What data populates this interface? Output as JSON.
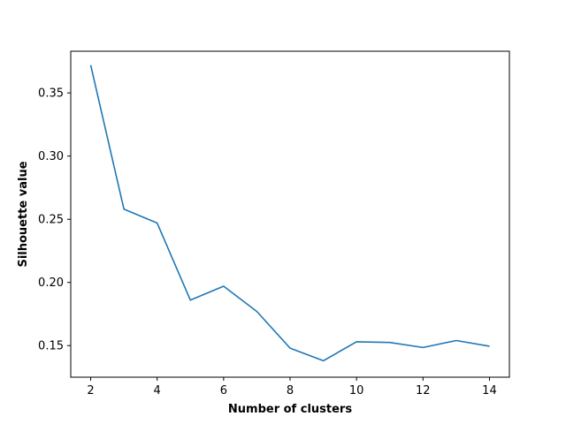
{
  "chart_data": {
    "type": "line",
    "title": "",
    "xlabel": "Number of clusters",
    "ylabel": "Silhouette value",
    "xlim": [
      1.4,
      14.6
    ],
    "ylim": [
      0.125,
      0.383
    ],
    "xticks": [
      2,
      4,
      6,
      8,
      10,
      12,
      14
    ],
    "yticks": [
      0.15,
      0.2,
      0.25,
      0.3,
      0.35
    ],
    "ytick_labels": [
      "0.15",
      "0.20",
      "0.25",
      "0.30",
      "0.35"
    ],
    "grid": false,
    "legend": "none",
    "line_color": "#1f77b4",
    "series": [
      {
        "x": [
          2,
          3,
          4,
          5,
          6,
          7,
          8,
          9,
          10,
          11,
          12,
          13,
          14
        ],
        "values": [
          0.372,
          0.258,
          0.247,
          0.186,
          0.197,
          0.177,
          0.148,
          0.138,
          0.153,
          0.1525,
          0.1485,
          0.154,
          0.1495
        ]
      }
    ]
  }
}
